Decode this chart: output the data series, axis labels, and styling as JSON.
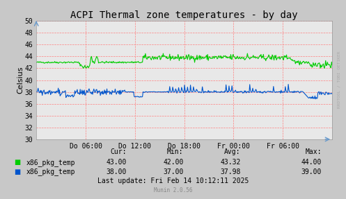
{
  "title": "ACPI Thermal zone temperatures - by day",
  "ylabel": "Celsius",
  "ylim": [
    30,
    50
  ],
  "yticks": [
    30,
    32,
    34,
    36,
    38,
    40,
    42,
    44,
    46,
    48,
    50
  ],
  "xtick_labels": [
    "Do 06:00",
    "Do 12:00",
    "Do 18:00",
    "Fr 00:00",
    "Fr 06:00"
  ],
  "bg_color": "#c8c8c8",
  "plot_bg_color": "#e8e8e8",
  "grid_color": "#ff8080",
  "line1_color": "#00cc00",
  "line2_color": "#0055cc",
  "legend_entries": [
    {
      "label": "x86_pkg_temp",
      "color": "#00cc00",
      "cur": "43.00",
      "min": "42.00",
      "avg": "43.32",
      "max": "44.00"
    },
    {
      "label": "x86_pkg_temp",
      "color": "#0055cc",
      "cur": "38.00",
      "min": "37.00",
      "avg": "37.98",
      "max": "39.00"
    }
  ],
  "footer_text": "Last update: Fri Feb 14 10:12:11 2025",
  "munin_text": "Munin 2.0.56",
  "watermark": "RRDTOOL / TOBI OETIKER",
  "title_fontsize": 10,
  "axis_fontsize": 7,
  "legend_fontsize": 7
}
